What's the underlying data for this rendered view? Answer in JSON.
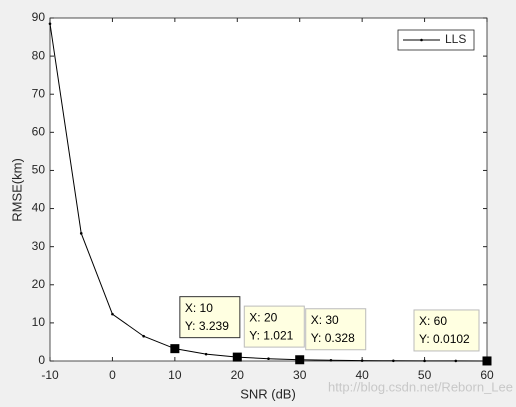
{
  "chart_data": {
    "type": "line",
    "xlabel": "SNR (dB)",
    "ylabel": "RMSE(km)",
    "x": [
      -10,
      -5,
      0,
      5,
      10,
      15,
      20,
      25,
      30,
      35,
      40,
      45,
      50,
      55,
      60
    ],
    "series": [
      {
        "name": "LLS",
        "color": "#000000",
        "values": [
          88.5,
          33.5,
          12.3,
          6.5,
          3.239,
          1.8,
          1.021,
          0.6,
          0.328,
          0.2,
          0.1,
          0.05,
          0.03,
          0.02,
          0.0102
        ]
      }
    ],
    "xlim": [
      -10,
      60
    ],
    "xticks": [
      -10,
      0,
      10,
      20,
      30,
      40,
      50,
      60
    ],
    "ylim": [
      0,
      90
    ],
    "yticks": [
      0,
      10,
      20,
      30,
      40,
      50,
      60,
      70,
      80,
      90
    ],
    "legend": "northeast",
    "datatips": [
      {
        "index": 4,
        "x_label": "X: 10",
        "y_label": "Y: 3.239"
      },
      {
        "index": 6,
        "x_label": "X: 20",
        "y_label": "Y: 1.021"
      },
      {
        "index": 8,
        "x_label": "X: 30",
        "y_label": "Y: 0.328"
      },
      {
        "index": 14,
        "x_label": "X: 60",
        "y_label": "Y: 0.0102"
      }
    ],
    "watermark": "http://blog.csdn.net/Reborn_Lee"
  }
}
